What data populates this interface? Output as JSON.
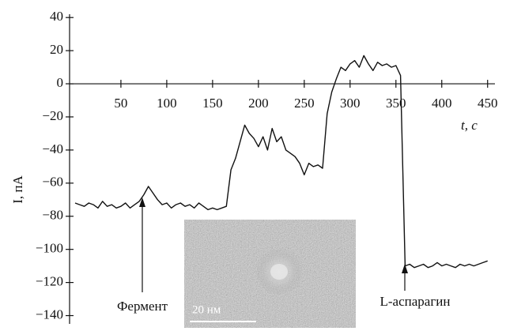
{
  "chart_data": {
    "type": "line",
    "x_label": "t, с",
    "y_label": "I, пА",
    "x": [
      0,
      5,
      10,
      15,
      20,
      25,
      30,
      35,
      40,
      45,
      50,
      55,
      60,
      65,
      70,
      75,
      80,
      85,
      90,
      95,
      100,
      105,
      110,
      115,
      120,
      125,
      130,
      135,
      140,
      145,
      150,
      155,
      160,
      165,
      170,
      175,
      180,
      185,
      190,
      195,
      200,
      205,
      210,
      215,
      220,
      225,
      230,
      235,
      240,
      245,
      250,
      255,
      260,
      265,
      270,
      275,
      280,
      285,
      290,
      295,
      300,
      305,
      310,
      315,
      320,
      325,
      330,
      335,
      340,
      345,
      350,
      355,
      360,
      365,
      370,
      375,
      380,
      385,
      390,
      395,
      400,
      405,
      410,
      415,
      420,
      425,
      430,
      435,
      440,
      445,
      450
    ],
    "series": [
      {
        "color": "#111111",
        "values": [
          -72,
          -73,
          -74,
          -72,
          -73,
          -75,
          -71,
          -74,
          -73,
          -75,
          -74,
          -72,
          -75,
          -73,
          -71,
          -67,
          -62,
          -66,
          -70,
          -73,
          -72,
          -75,
          -73,
          -72,
          -74,
          -73,
          -75,
          -72,
          -74,
          -76,
          -75,
          -76,
          -75,
          -74,
          -52,
          -45,
          -35,
          -25,
          -30,
          -33,
          -38,
          -32,
          -40,
          -27,
          -35,
          -32,
          -40,
          -42,
          -44,
          -48,
          -55,
          -48,
          -50,
          -49,
          -51,
          -18,
          -5,
          3,
          10,
          8,
          12,
          14,
          10,
          17,
          12,
          8,
          13,
          11,
          12,
          10,
          11,
          5,
          -110,
          -109,
          -111,
          -110,
          -109,
          -111,
          -110,
          -108,
          -110,
          -109,
          -110,
          -111,
          -109,
          -110,
          -109,
          -110,
          -109,
          -108,
          -107
        ]
      }
    ],
    "xlim": [
      -6,
      458
    ],
    "ylim": [
      -145,
      42
    ],
    "xticks": [
      50,
      100,
      150,
      200,
      250,
      300,
      350,
      400,
      450
    ],
    "yticks": [
      40,
      20,
      0,
      {
        "value": -20,
        "label": "−20"
      },
      {
        "value": -40,
        "label": "−40"
      },
      {
        "value": -60,
        "label": "−60"
      },
      {
        "value": -80,
        "label": "−80"
      },
      {
        "value": -100,
        "label": "−100"
      },
      {
        "value": -120,
        "label": "−120"
      },
      {
        "value": -140,
        "label": "−140"
      }
    ],
    "annotations": [
      "Фермент",
      "L-аспарагин"
    ],
    "inset_scale_label": "20 нм"
  }
}
